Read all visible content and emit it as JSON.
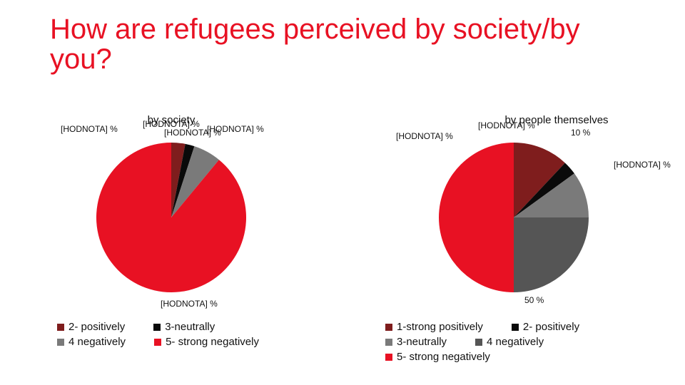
{
  "title": {
    "text": "How are refugees perceived by society/by you?",
    "fontsize": 40,
    "color": "#e81123"
  },
  "placeholder": "[HODNOTA] %",
  "chart_left": {
    "subtitle": "by society",
    "type": "pie",
    "diameter": 210,
    "background_color": "#ffffff",
    "slices": [
      {
        "name": "2- positively",
        "value": 3,
        "color": "#7f1d1d",
        "label": "[HODNOTA] %"
      },
      {
        "name": "3-neutrally",
        "value": 2,
        "color": "#0a0a0a",
        "label": "[HODNOTA] %"
      },
      {
        "name": "4 negatively",
        "value": 6,
        "color": "#7a7a7a",
        "label": "[HODNOTA] %"
      },
      {
        "name": "5- strong negatively",
        "value": 89,
        "color": "#e81123",
        "label": "[HODNOTA] %"
      }
    ],
    "under_label": "[HODNOTA] %",
    "legend": [
      [
        {
          "swatch": "#7f1d1d",
          "text": "2- positively"
        },
        {
          "swatch": "#0a0a0a",
          "text": "3-neutrally"
        }
      ],
      [
        {
          "swatch": "#7a7a7a",
          "text": "4 negatively"
        },
        {
          "swatch": "#e81123",
          "text": "5- strong negatively"
        }
      ]
    ]
  },
  "chart_right": {
    "subtitle": "by people themselves",
    "type": "pie",
    "diameter": 210,
    "background_color": "#ffffff",
    "slices": [
      {
        "name": "1-strong positively",
        "value": 12,
        "color": "#7f1d1d",
        "label": "[HODNOTA] %"
      },
      {
        "name": "2- positively",
        "value": 3,
        "color": "#0a0a0a",
        "label": "[HODNOTA] %"
      },
      {
        "name": "3-neutrally",
        "value": 10,
        "color": "#7a7a7a",
        "label": "10 %"
      },
      {
        "name": "4 negatively",
        "value": 25,
        "color": "#555555",
        "label": "[HODNOTA] %"
      },
      {
        "name": "5- strong negatively",
        "value": 50,
        "color": "#e81123",
        "label": "50 %"
      }
    ],
    "legend": [
      [
        {
          "swatch": "#7f1d1d",
          "text": "1-strong positively"
        },
        {
          "swatch": "#0a0a0a",
          "text": "2- positively"
        }
      ],
      [
        {
          "swatch": "#7a7a7a",
          "text": "3-neutrally"
        },
        {
          "swatch": "#555555",
          "text": "4 negatively"
        }
      ],
      [
        {
          "swatch": "#e81123",
          "text": "5- strong negatively"
        }
      ]
    ]
  },
  "label_fontsize": 12,
  "legend_fontsize": 15
}
